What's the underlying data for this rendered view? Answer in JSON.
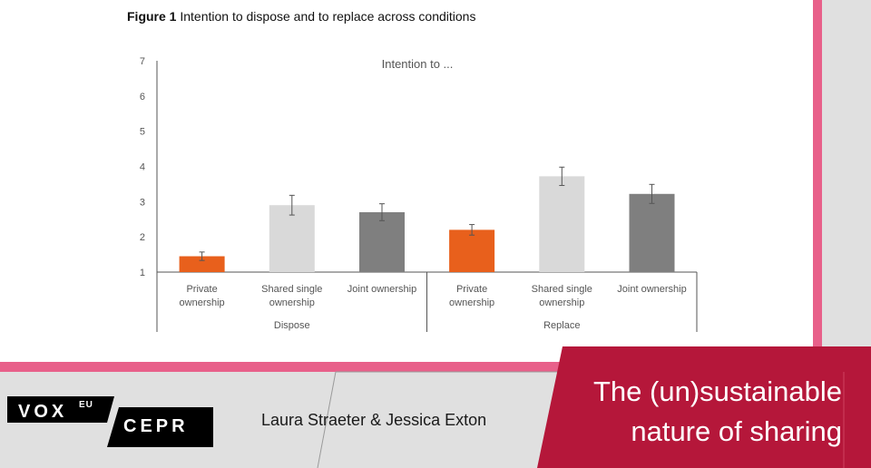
{
  "figure": {
    "number": "Figure 1",
    "title": "Intention to dispose and to replace across conditions"
  },
  "chart_data": {
    "type": "bar",
    "title": "Intention to ...",
    "ylim": [
      1,
      7
    ],
    "yticks": [
      "1",
      "2",
      "3",
      "4",
      "5",
      "6",
      "7"
    ],
    "groups": [
      {
        "name": "Dispose",
        "categories": [
          "Private ownership",
          "Shared single ownership",
          "Joint ownership"
        ],
        "values": [
          1.45,
          2.9,
          2.7
        ],
        "errors": [
          0.12,
          0.28,
          0.24
        ]
      },
      {
        "name": "Replace",
        "categories": [
          "Private ownership",
          "Shared single ownership",
          "Joint ownership"
        ],
        "values": [
          2.2,
          3.72,
          3.22
        ],
        "errors": [
          0.15,
          0.26,
          0.27
        ]
      }
    ],
    "bar_colors": [
      "#e8601c",
      "#d9d9d9",
      "#7f7f7f"
    ],
    "grid": false,
    "legend": "none"
  },
  "footer": {
    "logo_vox": "VOX",
    "logo_eu": "EU",
    "logo_cepr": "CEPR",
    "authors": "Laura Straeter & Jessica Exton",
    "headline_line1": "The (un)sustainable",
    "headline_line2": "nature of sharing"
  },
  "colors": {
    "accent_pink": "#e8608a",
    "headline_red": "#b5173a",
    "logo_black": "#000000",
    "background": "#e0e0e0"
  }
}
